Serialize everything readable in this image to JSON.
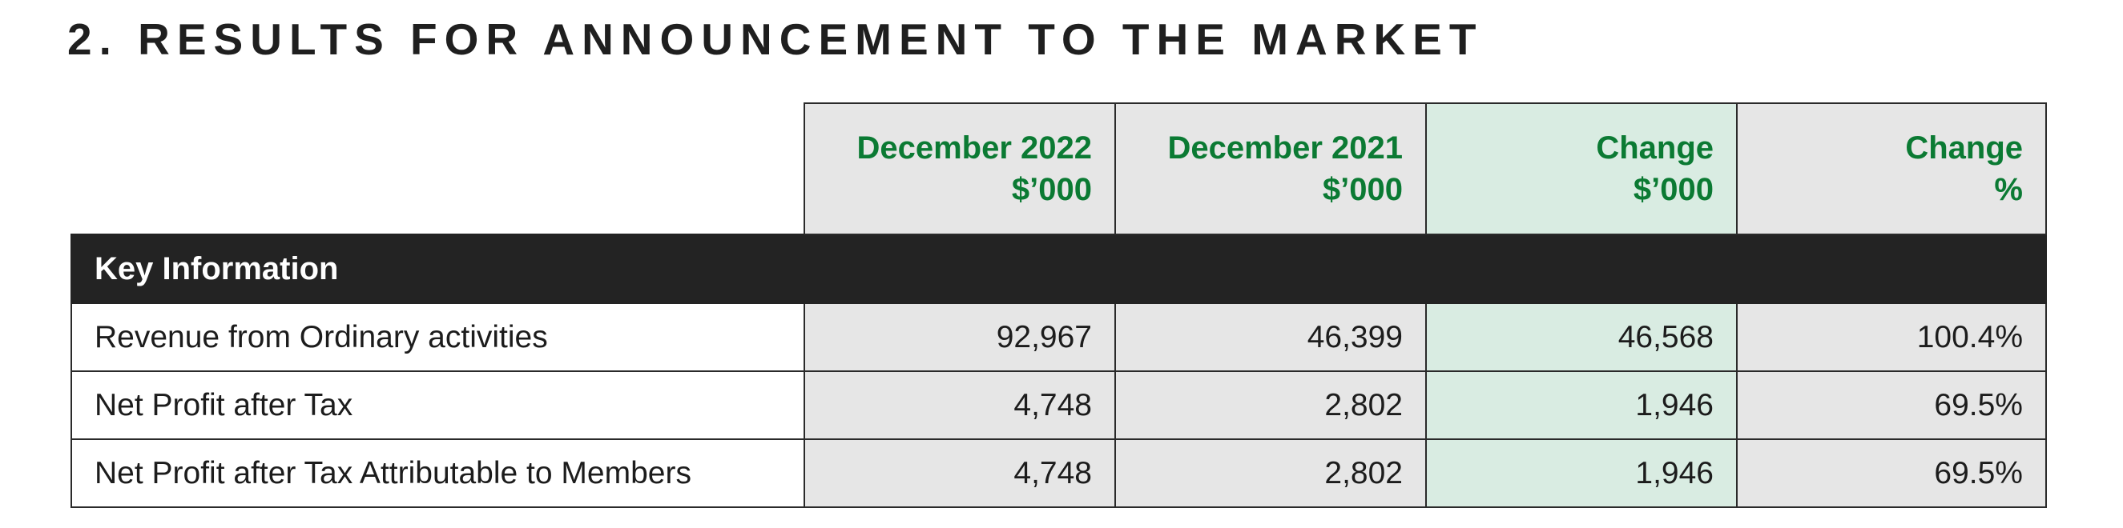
{
  "heading": "2. RESULTS FOR ANNOUNCEMENT TO THE MARKET",
  "table": {
    "columns": [
      {
        "line1": "December 2022",
        "line2": "$’000"
      },
      {
        "line1": "December 2021",
        "line2": "$’000"
      },
      {
        "line1": "Change",
        "line2": "$’000"
      },
      {
        "line1": "Change",
        "line2": "%"
      }
    ],
    "section_title": "Key Information",
    "rows": [
      {
        "label": "Revenue from Ordinary activities",
        "values": [
          "92,967",
          "46,399",
          "46,568",
          "100.4%"
        ]
      },
      {
        "label": "Net Profit after Tax",
        "values": [
          "4,748",
          "2,802",
          "1,946",
          "69.5%"
        ]
      },
      {
        "label": "Net Profit after Tax Attributable to Members",
        "values": [
          "4,748",
          "2,802",
          "1,946",
          "69.5%"
        ]
      }
    ]
  },
  "colors": {
    "header_text": "#0b7a33",
    "header_bg": "#e6e6e6",
    "change_highlight_bg": "#d9ece2",
    "section_bg": "#232323"
  }
}
